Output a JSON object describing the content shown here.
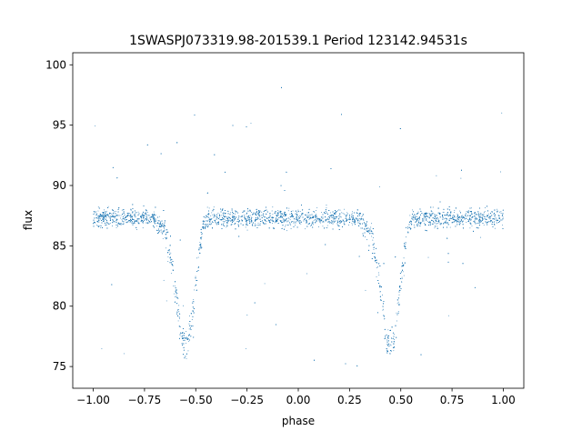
{
  "chart_data": {
    "type": "scatter",
    "title": "1SWASPJ073319.98-201539.1 Period 123142.94531s",
    "xlabel": "phase",
    "ylabel": "flux",
    "xlim": [
      -1.1,
      1.1
    ],
    "ylim": [
      73.2,
      101.0
    ],
    "xticks": [
      -1.0,
      -0.75,
      -0.5,
      -0.25,
      0.0,
      0.25,
      0.5,
      0.75,
      1.0
    ],
    "xtick_labels": [
      "−1.00",
      "−0.75",
      "−0.50",
      "−0.25",
      "0.00",
      "0.25",
      "0.50",
      "0.75",
      "1.00"
    ],
    "yticks": [
      75,
      80,
      85,
      90,
      95,
      100
    ],
    "ytick_labels": [
      "75",
      "80",
      "85",
      "90",
      "95",
      "100"
    ],
    "grid": false,
    "legend": "none",
    "marker_color": "#1f77b4",
    "series": [
      {
        "profile_x": [
          -1.0,
          -0.75,
          -0.7,
          -0.65,
          -0.62,
          -0.6,
          -0.58,
          -0.56,
          -0.54,
          -0.52,
          -0.5,
          -0.48,
          -0.46,
          -0.44,
          -0.4,
          -0.3,
          0.0,
          0.25,
          0.3,
          0.35,
          0.38,
          0.4,
          0.42,
          0.44,
          0.46,
          0.48,
          0.5,
          0.52,
          0.54,
          0.56,
          0.6,
          0.7,
          1.0
        ],
        "profile_y": [
          87.3,
          87.3,
          87.2,
          86.2,
          84.0,
          81.5,
          78.5,
          77.0,
          76.8,
          79.0,
          82.0,
          85.0,
          86.8,
          87.2,
          87.3,
          87.3,
          87.3,
          87.3,
          87.2,
          86.2,
          84.0,
          81.5,
          78.5,
          77.0,
          76.8,
          79.0,
          82.0,
          85.0,
          86.8,
          87.2,
          87.3,
          87.3,
          87.3
        ]
      }
    ]
  }
}
